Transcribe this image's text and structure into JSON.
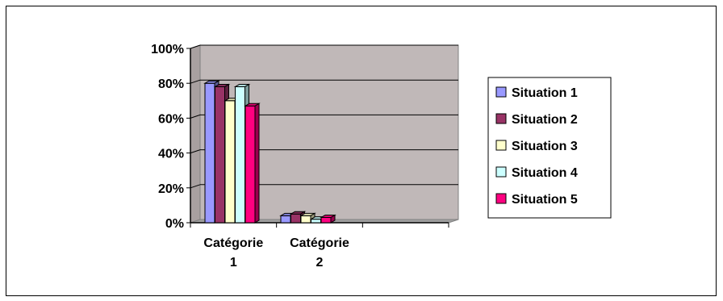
{
  "chart_data": {
    "type": "bar",
    "style": "3d-clustered-column",
    "categories": [
      "Catégorie 1",
      "Catégorie 2"
    ],
    "category_label_lines": [
      [
        "Catégorie",
        "1"
      ],
      [
        "Catégorie",
        "2"
      ]
    ],
    "y_ticks": [
      "0%",
      "20%",
      "40%",
      "60%",
      "80%",
      "100%"
    ],
    "ylim": [
      0,
      100
    ],
    "grid": true,
    "legend_position": "right",
    "plot_background": "#c0b8b8",
    "series": [
      {
        "name": "Situation 1",
        "color": "#9999ff",
        "values": [
          80,
          4
        ]
      },
      {
        "name": "Situation 2",
        "color": "#993366",
        "values": [
          78,
          5
        ]
      },
      {
        "name": "Situation 3",
        "color": "#ffffcc",
        "values": [
          70,
          4
        ]
      },
      {
        "name": "Situation 4",
        "color": "#ccffff",
        "values": [
          78,
          2
        ]
      },
      {
        "name": "Situation 5",
        "color": "#ff0080",
        "values": [
          67,
          3
        ]
      }
    ]
  }
}
